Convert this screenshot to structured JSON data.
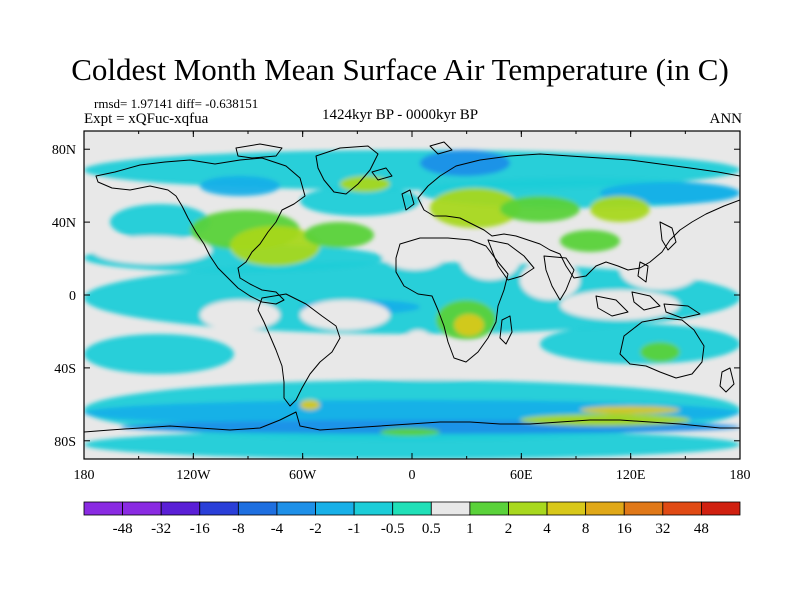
{
  "title": "Coldest Month Mean Surface Air Temperature (in C)",
  "stats": "rmsd= 1.97141 diff= -0.638151",
  "experiment": "Expt = xQFuc-xqfua",
  "period": "1424kyr BP - 0000kyr BP",
  "season": "ANN",
  "map": {
    "projection": "cylindrical equidistant",
    "lon_ticks": [
      "180",
      "120W",
      "60W",
      "0",
      "60E",
      "120E",
      "180"
    ],
    "lat_ticks": [
      "80N",
      "40N",
      "0",
      "40S",
      "80S"
    ]
  },
  "colorbar": {
    "labels": [
      "-48",
      "-32",
      "-16",
      "-8",
      "-4",
      "-2",
      "-1",
      "-0.5",
      "0.5",
      "1",
      "2",
      "4",
      "8",
      "16",
      "32",
      "48"
    ],
    "colors": [
      "#8a2be2",
      "#5a1fd6",
      "#2a3fd8",
      "#1e6fe0",
      "#1e90e8",
      "#18b0e8",
      "#1ccdd8",
      "#20e0b8",
      "#e8e8e8",
      "#5ad23a",
      "#a8d81e",
      "#d8c81a",
      "#e0a818",
      "#e07818",
      "#e04a14",
      "#d02010"
    ]
  }
}
